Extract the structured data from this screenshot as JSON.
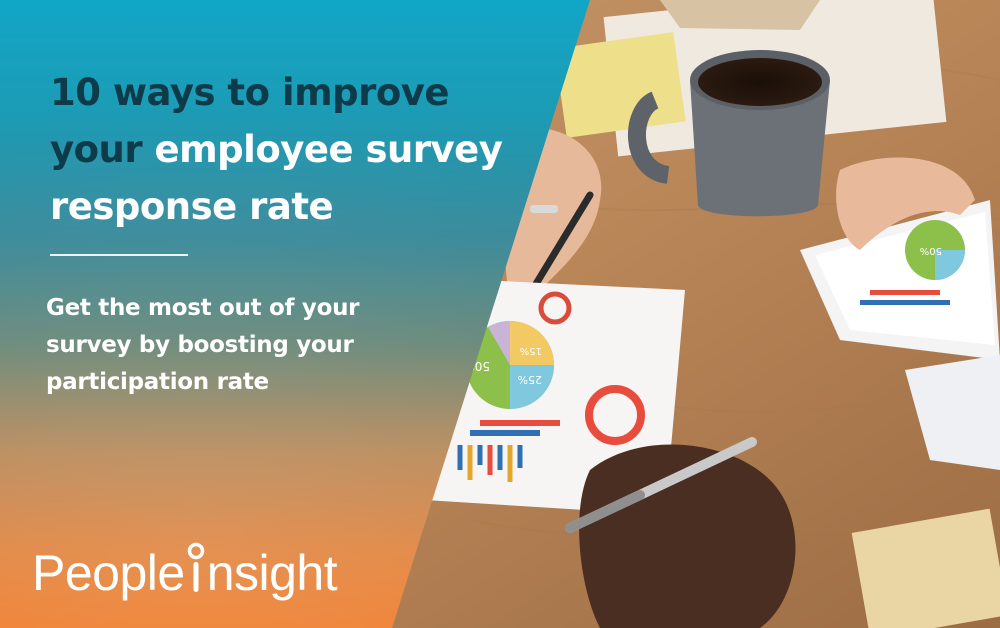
{
  "headline": {
    "line1": "10 ways to improve",
    "line2_a": "your ",
    "line2_b": "employee survey",
    "line3": "response rate"
  },
  "subheadline": {
    "line1": "Get the most out of your",
    "line2": "survey by boosting your",
    "line3": "participation rate"
  },
  "logo": {
    "text_start": "People",
    "text_end": "nsight"
  },
  "photo_labels": {
    "pie_green": "50%",
    "pie_yellow": "25%",
    "pie_blue": "15%",
    "tablet_green": "50%"
  },
  "colors": {
    "gradient_top": "#12a6c6",
    "gradient_bottom": "#ef7f30",
    "headline_dark": "#0d3b4a",
    "text_light": "#ffffff"
  }
}
